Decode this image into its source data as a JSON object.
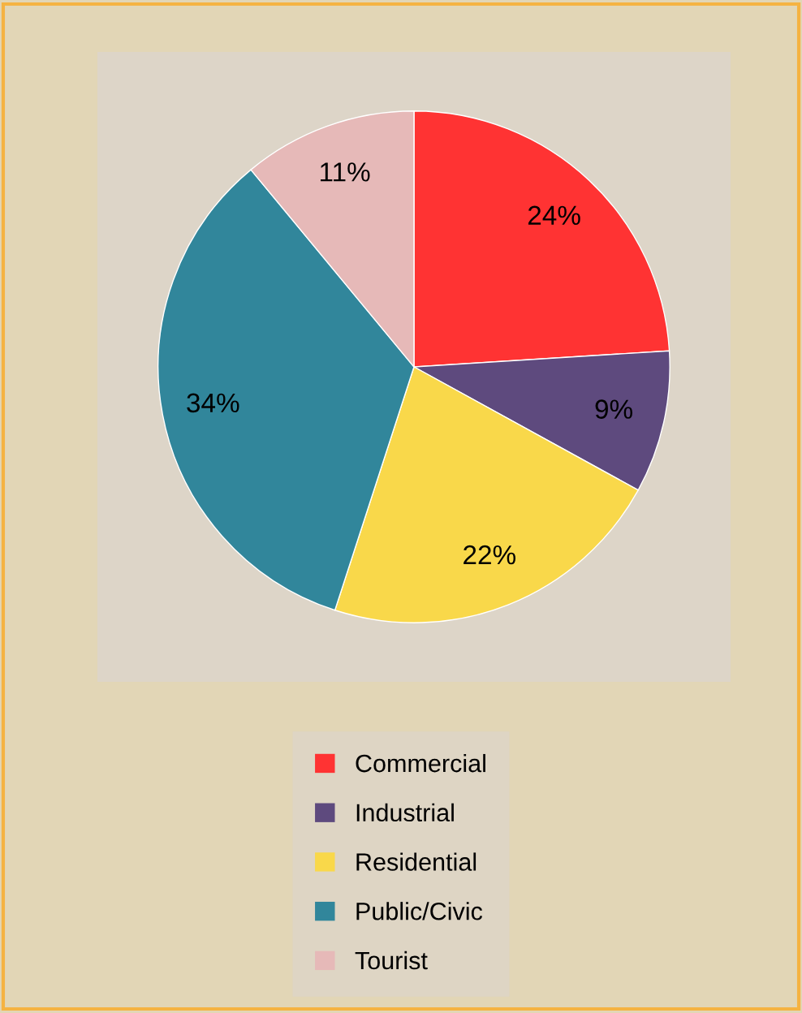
{
  "chart_data": {
    "type": "pie",
    "categories": [
      "Commercial",
      "Industrial",
      "Residential",
      "Public/Civic",
      "Tourist"
    ],
    "values": [
      24,
      9,
      22,
      34,
      11
    ],
    "colors": [
      "#ff3333",
      "#5e4a7e",
      "#f9d84a",
      "#31869b",
      "#e6b9b8"
    ],
    "value_labels": [
      "24%",
      "9%",
      "22%",
      "34%",
      "11%"
    ],
    "legend": "bottom"
  }
}
